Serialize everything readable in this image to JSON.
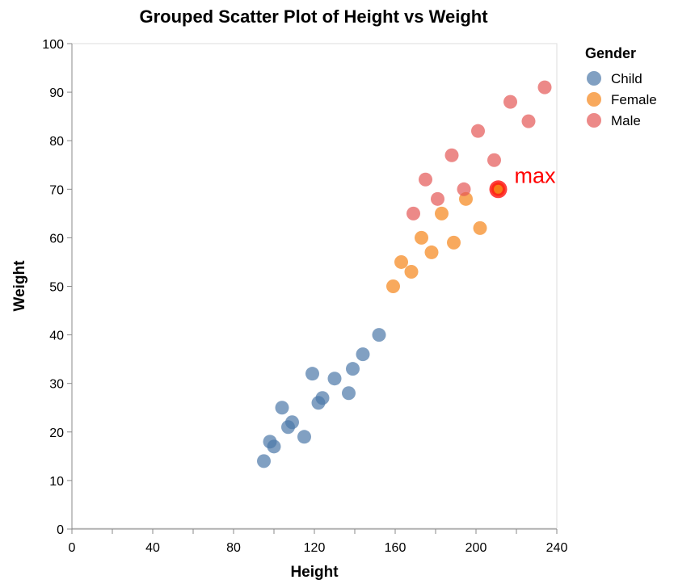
{
  "chart_data": {
    "type": "scatter",
    "title": "Grouped Scatter Plot of Height vs Weight",
    "xlabel": "Height",
    "ylabel": "Weight",
    "xlim": [
      0,
      240
    ],
    "ylim": [
      0,
      100
    ],
    "x_ticks": [
      0,
      20,
      40,
      60,
      80,
      100,
      120,
      140,
      160,
      180,
      200,
      220,
      240
    ],
    "x_tick_labels": [
      "0",
      "",
      "40",
      "",
      "80",
      "",
      "120",
      "",
      "160",
      "",
      "200",
      "",
      "240"
    ],
    "y_ticks": [
      0,
      10,
      20,
      30,
      40,
      50,
      60,
      70,
      80,
      90,
      100
    ],
    "y_tick_labels": [
      "0",
      "10",
      "20",
      "30",
      "40",
      "50",
      "60",
      "70",
      "80",
      "90",
      "100"
    ],
    "grid": false,
    "legend": {
      "title": "Gender",
      "placement": "right",
      "entries": [
        "Child",
        "Female",
        "Male"
      ]
    },
    "series": [
      {
        "name": "Child",
        "color": "#4c78a8",
        "points": [
          {
            "x": 95,
            "y": 14
          },
          {
            "x": 98,
            "y": 18
          },
          {
            "x": 100,
            "y": 17
          },
          {
            "x": 104,
            "y": 25
          },
          {
            "x": 107,
            "y": 21
          },
          {
            "x": 109,
            "y": 22
          },
          {
            "x": 115,
            "y": 19
          },
          {
            "x": 119,
            "y": 32
          },
          {
            "x": 122,
            "y": 26
          },
          {
            "x": 124,
            "y": 27
          },
          {
            "x": 130,
            "y": 31
          },
          {
            "x": 137,
            "y": 28
          },
          {
            "x": 139,
            "y": 33
          },
          {
            "x": 144,
            "y": 36
          },
          {
            "x": 152,
            "y": 40
          }
        ]
      },
      {
        "name": "Female",
        "color": "#f58518",
        "points": [
          {
            "x": 159,
            "y": 50
          },
          {
            "x": 163,
            "y": 55
          },
          {
            "x": 168,
            "y": 53
          },
          {
            "x": 173,
            "y": 60
          },
          {
            "x": 178,
            "y": 57
          },
          {
            "x": 183,
            "y": 65
          },
          {
            "x": 189,
            "y": 59
          },
          {
            "x": 195,
            "y": 68
          },
          {
            "x": 202,
            "y": 62
          },
          {
            "x": 211,
            "y": 70
          }
        ]
      },
      {
        "name": "Male",
        "color": "#e45756",
        "points": [
          {
            "x": 169,
            "y": 65
          },
          {
            "x": 175,
            "y": 72
          },
          {
            "x": 181,
            "y": 68
          },
          {
            "x": 188,
            "y": 77
          },
          {
            "x": 194,
            "y": 70
          },
          {
            "x": 201,
            "y": 82
          },
          {
            "x": 209,
            "y": 76
          },
          {
            "x": 217,
            "y": 88
          },
          {
            "x": 226,
            "y": 84
          },
          {
            "x": 234,
            "y": 91
          }
        ]
      }
    ],
    "annotation": {
      "text": "max",
      "x": 211,
      "y": 70,
      "color": "#ff0000",
      "marker_fill": "#f58518"
    }
  }
}
